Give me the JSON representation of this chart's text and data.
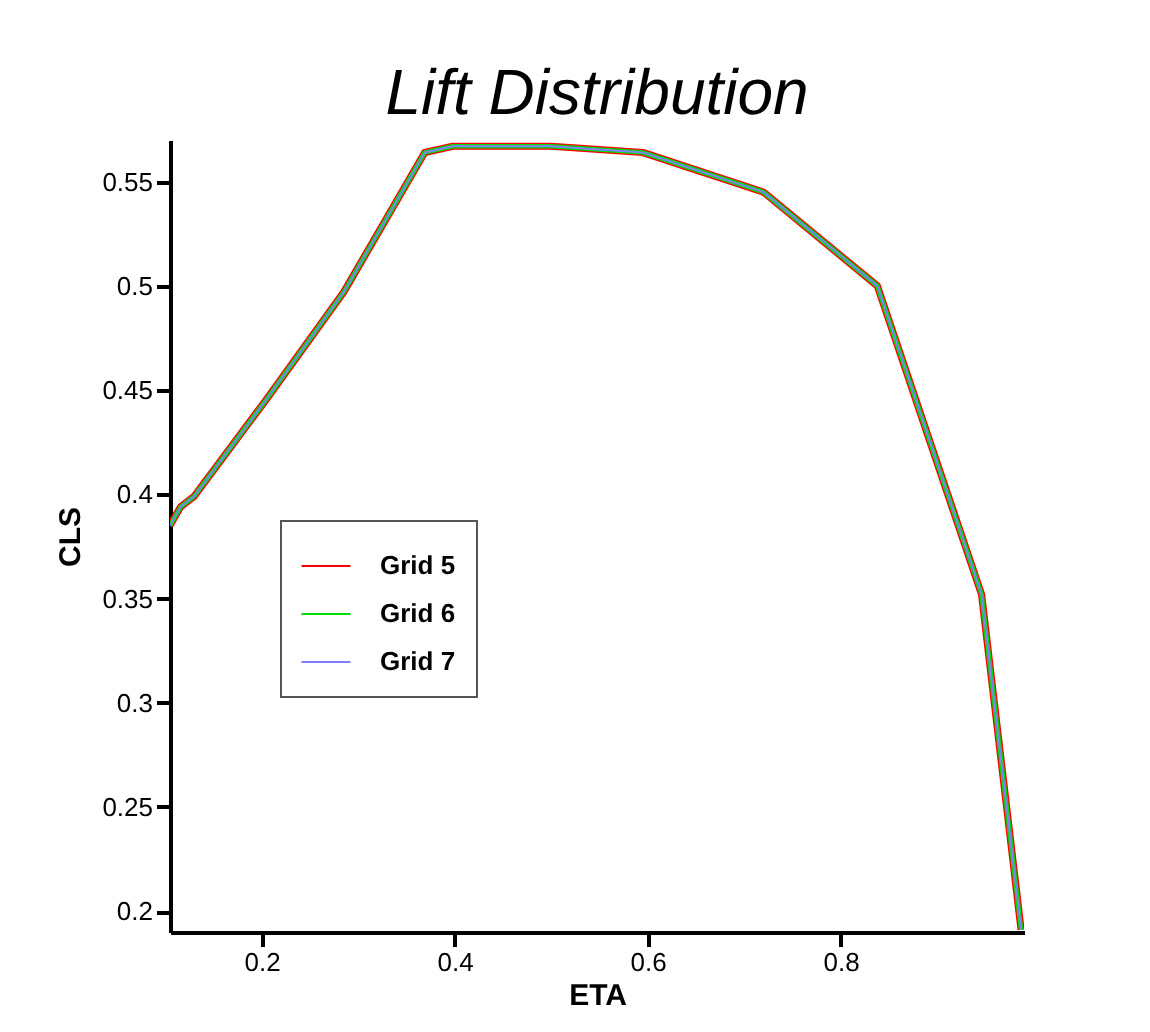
{
  "chart_data": {
    "type": "line",
    "title": "Lift Distribution",
    "xlabel": "ETA",
    "ylabel": "CLS",
    "x": [
      0.105,
      0.116,
      0.13,
      0.204,
      0.285,
      0.369,
      0.398,
      0.5,
      0.595,
      0.72,
      0.838,
      0.946,
      0.987
    ],
    "series": [
      {
        "name": "Grid 5",
        "color": "#ff0000",
        "values": [
          0.385,
          0.394,
          0.399,
          0.445,
          0.497,
          0.564,
          0.567,
          0.567,
          0.564,
          0.545,
          0.5,
          0.352,
          0.191
        ]
      },
      {
        "name": "Grid 6",
        "color": "#00dd00",
        "values": [
          0.385,
          0.394,
          0.399,
          0.445,
          0.497,
          0.564,
          0.567,
          0.567,
          0.564,
          0.545,
          0.5,
          0.352,
          0.191
        ]
      },
      {
        "name": "Grid 7",
        "color": "#7f7fff",
        "values": [
          0.385,
          0.394,
          0.399,
          0.445,
          0.497,
          0.564,
          0.567,
          0.567,
          0.564,
          0.545,
          0.5,
          0.352,
          0.191
        ]
      }
    ],
    "xlim": [
      0.105,
      0.99
    ],
    "ylim": [
      0.19,
      0.57
    ],
    "xticks": [
      0.2,
      0.4,
      0.6,
      0.8
    ],
    "yticks": [
      0.2,
      0.25,
      0.3,
      0.35,
      0.4,
      0.45,
      0.5,
      0.55
    ],
    "legend": "left",
    "grid": false
  }
}
